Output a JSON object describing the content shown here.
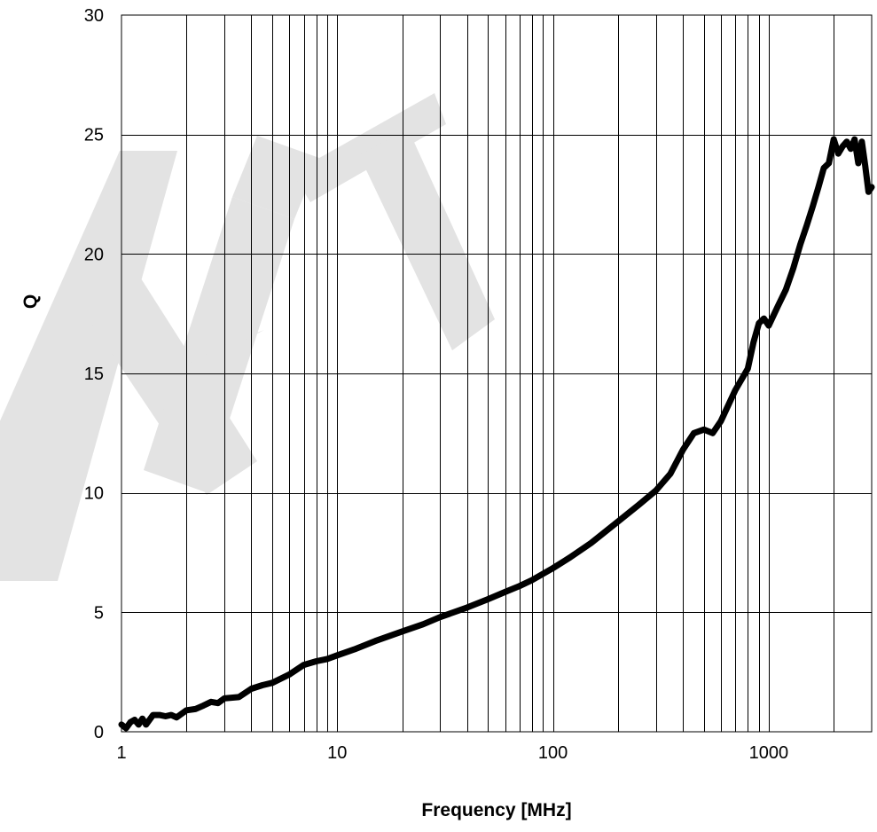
{
  "chart_data": {
    "type": "line",
    "title": "",
    "xlabel": "Frequency [MHz]",
    "ylabel": "Q",
    "x_scale": "log",
    "xlim": [
      1,
      3000
    ],
    "ylim": [
      0,
      30
    ],
    "x_ticks": [
      {
        "value": 1,
        "label": "1"
      },
      {
        "value": 10,
        "label": "10"
      },
      {
        "value": 100,
        "label": "100"
      },
      {
        "value": 1000,
        "label": "1000"
      }
    ],
    "y_ticks": [
      {
        "value": 0,
        "label": "0"
      },
      {
        "value": 5,
        "label": "5"
      },
      {
        "value": 10,
        "label": "10"
      },
      {
        "value": 15,
        "label": "15"
      },
      {
        "value": 20,
        "label": "20"
      },
      {
        "value": 25,
        "label": "25"
      },
      {
        "value": 30,
        "label": "30"
      }
    ],
    "grid": true,
    "legend": "none",
    "watermark": "DRAFT",
    "colors": {
      "line": "#000000",
      "grid": "#000000",
      "watermark": "#e3e3e3"
    },
    "series": [
      {
        "points": [
          [
            1,
            0.3
          ],
          [
            1.05,
            0.15
          ],
          [
            1.1,
            0.4
          ],
          [
            1.15,
            0.5
          ],
          [
            1.2,
            0.3
          ],
          [
            1.25,
            0.55
          ],
          [
            1.3,
            0.3
          ],
          [
            1.4,
            0.7
          ],
          [
            1.5,
            0.7
          ],
          [
            1.6,
            0.65
          ],
          [
            1.7,
            0.7
          ],
          [
            1.8,
            0.6
          ],
          [
            2,
            0.9
          ],
          [
            2.2,
            0.95
          ],
          [
            2.4,
            1.1
          ],
          [
            2.6,
            1.25
          ],
          [
            2.8,
            1.2
          ],
          [
            3,
            1.4
          ],
          [
            3.5,
            1.45
          ],
          [
            4,
            1.8
          ],
          [
            4.5,
            1.95
          ],
          [
            5,
            2.05
          ],
          [
            6,
            2.4
          ],
          [
            7,
            2.8
          ],
          [
            8,
            2.95
          ],
          [
            9,
            3.05
          ],
          [
            10,
            3.2
          ],
          [
            12,
            3.45
          ],
          [
            15,
            3.8
          ],
          [
            20,
            4.2
          ],
          [
            25,
            4.5
          ],
          [
            30,
            4.8
          ],
          [
            40,
            5.2
          ],
          [
            50,
            5.55
          ],
          [
            60,
            5.85
          ],
          [
            70,
            6.1
          ],
          [
            80,
            6.35
          ],
          [
            100,
            6.85
          ],
          [
            120,
            7.3
          ],
          [
            150,
            7.9
          ],
          [
            200,
            8.8
          ],
          [
            250,
            9.5
          ],
          [
            300,
            10.1
          ],
          [
            350,
            10.8
          ],
          [
            400,
            11.8
          ],
          [
            450,
            12.5
          ],
          [
            500,
            12.65
          ],
          [
            550,
            12.5
          ],
          [
            600,
            13.0
          ],
          [
            700,
            14.3
          ],
          [
            800,
            15.2
          ],
          [
            850,
            16.3
          ],
          [
            900,
            17.1
          ],
          [
            950,
            17.3
          ],
          [
            1000,
            17.0
          ],
          [
            1100,
            17.8
          ],
          [
            1200,
            18.5
          ],
          [
            1300,
            19.4
          ],
          [
            1400,
            20.4
          ],
          [
            1500,
            21.2
          ],
          [
            1600,
            22.0
          ],
          [
            1700,
            22.8
          ],
          [
            1800,
            23.6
          ],
          [
            1900,
            23.8
          ],
          [
            2000,
            24.8
          ],
          [
            2100,
            24.2
          ],
          [
            2200,
            24.5
          ],
          [
            2300,
            24.7
          ],
          [
            2400,
            24.4
          ],
          [
            2500,
            24.8
          ],
          [
            2600,
            23.8
          ],
          [
            2700,
            24.7
          ],
          [
            2800,
            23.7
          ],
          [
            2900,
            22.6
          ],
          [
            3000,
            22.8
          ]
        ]
      }
    ]
  }
}
